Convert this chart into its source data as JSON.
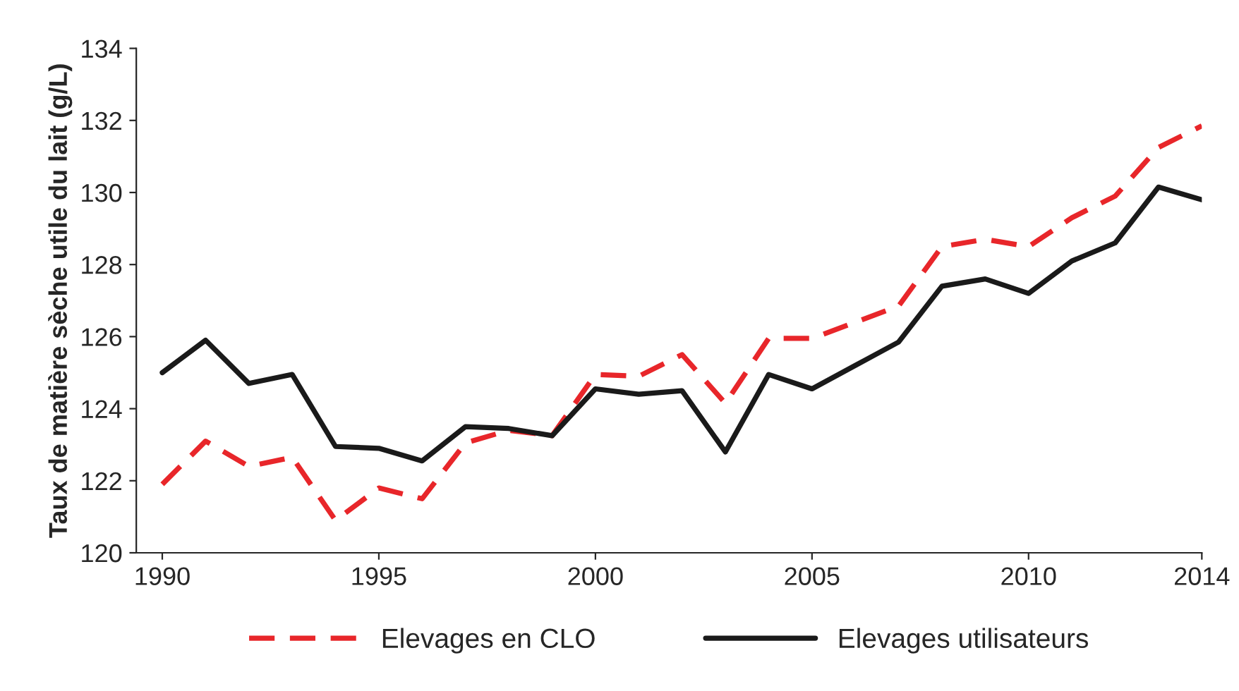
{
  "chart_data": {
    "type": "line",
    "ylabel": "Taux de matière sèche utile du lait (g/L)",
    "x": [
      1990,
      1991,
      1992,
      1993,
      1994,
      1995,
      1996,
      1997,
      1998,
      1999,
      2000,
      2001,
      2002,
      2003,
      2004,
      2005,
      2006,
      2007,
      2008,
      2009,
      2010,
      2011,
      2012,
      2013,
      2014
    ],
    "series": [
      {
        "name": "Elevages en CLO",
        "color": "#e8262a",
        "line_style": "dashed",
        "values": [
          121.9,
          123.1,
          122.4,
          122.65,
          120.9,
          121.8,
          121.5,
          123.05,
          123.4,
          123.25,
          124.95,
          124.9,
          125.5,
          124.15,
          125.95,
          125.95,
          126.4,
          126.85,
          128.5,
          128.7,
          128.5,
          129.3,
          129.9,
          131.25,
          131.85
        ]
      },
      {
        "name": "Elevages utilisateurs",
        "color": "#1a1a1a",
        "line_style": "solid",
        "values": [
          125.0,
          125.9,
          124.7,
          124.95,
          122.95,
          122.9,
          122.55,
          123.5,
          123.45,
          123.25,
          124.55,
          124.4,
          124.5,
          122.8,
          124.95,
          124.55,
          125.2,
          125.85,
          127.4,
          127.6,
          127.2,
          128.1,
          128.6,
          130.15,
          129.8
        ]
      }
    ],
    "xlim": [
      1989.4,
      2014
    ],
    "xticks": [
      1990,
      1995,
      2000,
      2005,
      2010,
      2014
    ],
    "ylim": [
      120,
      134
    ],
    "yticks": [
      120,
      122,
      124,
      126,
      128,
      130,
      132,
      134
    ],
    "grid": false,
    "legend": "bottom"
  }
}
